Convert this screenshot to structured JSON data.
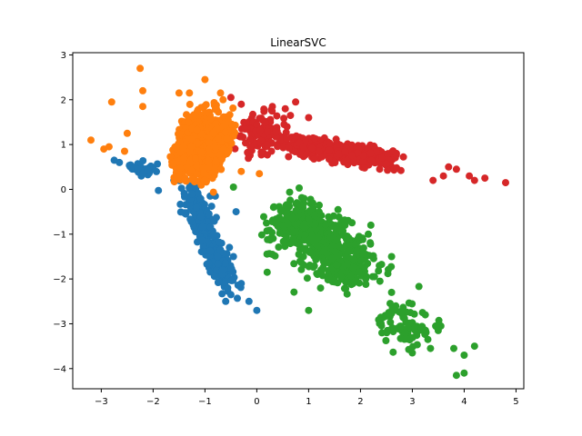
{
  "chart_data": {
    "type": "scatter",
    "title": "LinearSVC",
    "xlabel": "",
    "ylabel": "",
    "xlim": [
      -3.55,
      5.15
    ],
    "ylim": [
      -4.45,
      3.05
    ],
    "xticks": [
      -3,
      -2,
      -1,
      0,
      1,
      2,
      3,
      4,
      5
    ],
    "yticks": [
      -4,
      -3,
      -2,
      -1,
      0,
      1,
      2,
      3
    ],
    "grid": false,
    "legend": "none",
    "series": [
      {
        "color": "#1f77b4",
        "clusters": [
          {
            "n": 260,
            "center": [
              -0.95,
              -1.05
            ],
            "axis": [
              0.36,
              -1.0
            ],
            "spread": 1.55,
            "width": 0.13
          },
          {
            "n": 40,
            "center": [
              -2.2,
              0.45
            ],
            "axis": [
              1.0,
              -0.2
            ],
            "spread": 0.35,
            "width": 0.1
          }
        ],
        "points": [
          [
            -2.75,
            0.65
          ],
          [
            -2.65,
            0.6
          ],
          [
            -2.3,
            0.45
          ],
          [
            -2.2,
            0.35
          ],
          [
            -1.6,
            0.2
          ],
          [
            -1.25,
            -0.1
          ],
          [
            -0.9,
            -0.15
          ],
          [
            -0.8,
            -0.15
          ],
          [
            -0.45,
            -1.5
          ],
          [
            -0.3,
            -2.1
          ],
          [
            0.0,
            -2.7
          ],
          [
            -0.15,
            -2.5
          ],
          [
            -0.5,
            -2.35
          ],
          [
            -0.6,
            -2.5
          ],
          [
            -0.4,
            -0.5
          ]
        ]
      },
      {
        "color": "#2ca02c",
        "clusters": [
          {
            "n": 520,
            "center": [
              1.3,
              -1.25
            ],
            "axis": [
              1.0,
              -0.95
            ],
            "spread": 1.35,
            "width": 0.3
          },
          {
            "n": 80,
            "center": [
              2.85,
              -3.0
            ],
            "axis": [
              1.0,
              -0.6
            ],
            "spread": 0.6,
            "width": 0.25
          }
        ],
        "points": [
          [
            -0.45,
            0.05
          ],
          [
            0.2,
            -1.85
          ],
          [
            0.3,
            -1.45
          ],
          [
            1.0,
            -2.7
          ],
          [
            2.2,
            -0.8
          ],
          [
            2.15,
            -1.0
          ],
          [
            2.6,
            -1.5
          ],
          [
            2.6,
            -2.3
          ],
          [
            3.25,
            -2.8
          ],
          [
            3.45,
            -3.05
          ],
          [
            3.55,
            -3.05
          ],
          [
            3.3,
            -3.35
          ],
          [
            3.0,
            -3.65
          ],
          [
            3.35,
            -3.55
          ],
          [
            3.8,
            -3.55
          ],
          [
            4.0,
            -3.7
          ],
          [
            4.2,
            -3.5
          ],
          [
            3.85,
            -4.15
          ],
          [
            4.0,
            -4.1
          ],
          [
            3.5,
            -3.15
          ]
        ]
      },
      {
        "color": "#d62728",
        "clusters": [
          {
            "n": 360,
            "center": [
              1.55,
              0.85
            ],
            "axis": [
              1.0,
              -0.18
            ],
            "spread": 1.35,
            "width": 0.12
          },
          {
            "n": 120,
            "center": [
              0.05,
              1.25
            ],
            "axis": [
              1.0,
              -0.6
            ],
            "spread": 0.45,
            "width": 0.22
          }
        ],
        "points": [
          [
            -0.5,
            2.05
          ],
          [
            -0.3,
            1.9
          ],
          [
            0.3,
            1.85
          ],
          [
            0.55,
            1.8
          ],
          [
            0.75,
            1.95
          ],
          [
            0.65,
            1.65
          ],
          [
            1.0,
            1.6
          ],
          [
            3.7,
            0.5
          ],
          [
            3.85,
            0.45
          ],
          [
            4.1,
            0.3
          ],
          [
            4.4,
            0.25
          ],
          [
            4.8,
            0.15
          ],
          [
            4.2,
            0.2
          ],
          [
            3.4,
            0.2
          ],
          [
            3.6,
            0.3
          ]
        ]
      },
      {
        "color": "#ff7f0e",
        "clusters": [
          {
            "n": 1300,
            "center": [
              -1.05,
              1.0
            ],
            "axis": [
              1.0,
              -0.3
            ],
            "spread": 0.55,
            "width": 0.33
          }
        ],
        "points": [
          [
            -3.2,
            1.1
          ],
          [
            -2.95,
            0.9
          ],
          [
            -2.85,
            0.95
          ],
          [
            -2.8,
            1.95
          ],
          [
            -2.25,
            2.7
          ],
          [
            -2.2,
            2.2
          ],
          [
            -1.5,
            2.15
          ],
          [
            -1.3,
            2.15
          ],
          [
            -1.0,
            2.45
          ],
          [
            -0.7,
            2.15
          ],
          [
            -0.65,
            2.0
          ],
          [
            -2.55,
            0.85
          ],
          [
            -2.5,
            1.25
          ],
          [
            -2.2,
            1.85
          ],
          [
            0.05,
            0.35
          ],
          [
            -0.3,
            0.4
          ]
        ]
      }
    ]
  }
}
